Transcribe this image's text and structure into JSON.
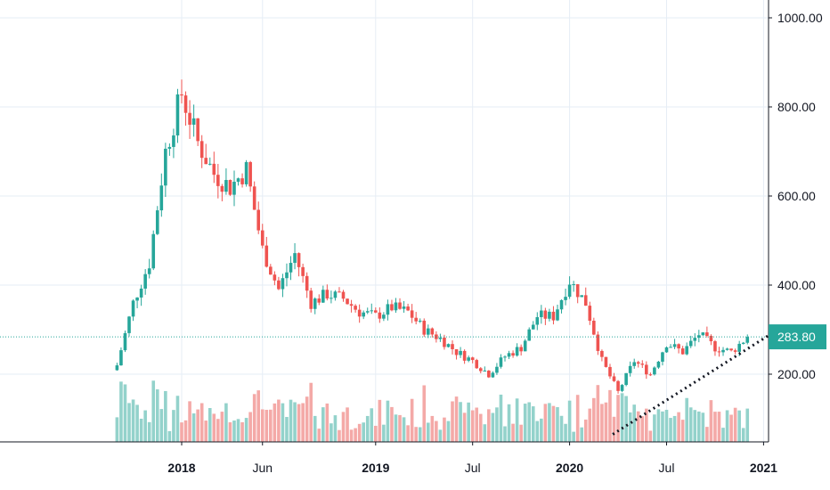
{
  "chart_data": {
    "type": "candlestick",
    "title": "",
    "xlabel": "",
    "ylabel": "",
    "ylim": [
      40,
      1060
    ],
    "y_ticks": [
      "1000.00",
      "800.00",
      "600.00",
      "400.00",
      "200.00"
    ],
    "y_tick_values": [
      1000,
      800,
      600,
      400,
      200
    ],
    "x_ticks": [
      {
        "label": "2018",
        "date": "2018-01",
        "bold": true
      },
      {
        "label": "Jun",
        "date": "2018-06",
        "bold": false
      },
      {
        "label": "2019",
        "date": "2019-01",
        "bold": true
      },
      {
        "label": "Jul",
        "date": "2019-07",
        "bold": false
      },
      {
        "label": "2020",
        "date": "2020-01",
        "bold": true
      },
      {
        "label": "Jul",
        "date": "2020-07",
        "bold": false
      },
      {
        "label": "2021",
        "date": "2021-01",
        "bold": true
      }
    ],
    "last_price": "283.80",
    "last_price_value": 283.8,
    "colors": {
      "up": "#26a69a",
      "down": "#ef5350",
      "up_volume": "#93d2cb",
      "down_volume": "#f4a9a7",
      "grid": "#e6edf5",
      "axis": "#131722"
    },
    "grid": true,
    "trendline": {
      "style": "dotted",
      "start": {
        "date": "2020-04",
        "value": 125
      },
      "end": {
        "date": "2020-12",
        "value": 283
      }
    },
    "period": {
      "start": "2017-09",
      "end": "2020-12"
    },
    "keypoints": [
      {
        "date": "2017-09",
        "close": 220
      },
      {
        "date": "2017-10",
        "close": 360
      },
      {
        "date": "2017-11",
        "close": 450
      },
      {
        "date": "2017-12",
        "close": 700
      },
      {
        "date": "2018-01",
        "close": 830
      },
      {
        "date": "2018-02",
        "close": 720
      },
      {
        "date": "2018-03",
        "close": 650
      },
      {
        "date": "2018-04",
        "close": 620
      },
      {
        "date": "2018-05",
        "close": 660
      },
      {
        "date": "2018-06",
        "close": 480
      },
      {
        "date": "2018-07",
        "close": 390
      },
      {
        "date": "2018-08",
        "close": 470
      },
      {
        "date": "2018-09",
        "close": 360
      },
      {
        "date": "2018-10",
        "close": 380
      },
      {
        "date": "2018-11",
        "close": 370
      },
      {
        "date": "2018-12",
        "close": 340
      },
      {
        "date": "2019-01",
        "close": 330
      },
      {
        "date": "2019-02",
        "close": 350
      },
      {
        "date": "2019-03",
        "close": 340
      },
      {
        "date": "2019-04",
        "close": 300
      },
      {
        "date": "2019-05",
        "close": 280
      },
      {
        "date": "2019-06",
        "close": 250
      },
      {
        "date": "2019-07",
        "close": 230
      },
      {
        "date": "2019-08",
        "close": 200
      },
      {
        "date": "2019-09",
        "close": 240
      },
      {
        "date": "2019-10",
        "close": 260
      },
      {
        "date": "2019-11",
        "close": 330
      },
      {
        "date": "2019-12",
        "close": 330
      },
      {
        "date": "2020-01",
        "close": 410
      },
      {
        "date": "2020-02",
        "close": 360
      },
      {
        "date": "2020-03",
        "close": 230
      },
      {
        "date": "2020-04",
        "close": 160
      },
      {
        "date": "2020-05",
        "close": 230
      },
      {
        "date": "2020-06",
        "close": 200
      },
      {
        "date": "2020-07",
        "close": 270
      },
      {
        "date": "2020-08",
        "close": 250
      },
      {
        "date": "2020-09",
        "close": 290
      },
      {
        "date": "2020-10",
        "close": 260
      },
      {
        "date": "2020-11",
        "close": 250
      },
      {
        "date": "2020-12",
        "close": 283.8
      }
    ]
  }
}
